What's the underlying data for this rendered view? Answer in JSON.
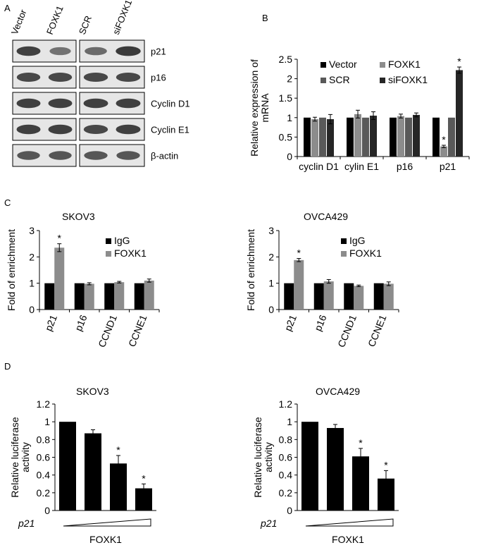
{
  "panels": {
    "A": "A",
    "B": "B",
    "C": "C",
    "D": "D"
  },
  "colors": {
    "black": "#000000",
    "grey": "#8c8c8c",
    "darkgrey": "#595959",
    "verydark": "#262626"
  },
  "blot": {
    "group1_lanes": [
      "Vector",
      "FOXK1"
    ],
    "group2_lanes": [
      "SCR",
      "siFOXK1"
    ],
    "rows": [
      "p21",
      "p16",
      "Cyclin D1",
      "Cyclin E1",
      "β-actin"
    ],
    "intensity": [
      [
        [
          0.9,
          0.55
        ],
        [
          0.6,
          0.95
        ]
      ],
      [
        [
          0.85,
          0.85
        ],
        [
          0.85,
          0.85
        ]
      ],
      [
        [
          0.9,
          0.9
        ],
        [
          0.9,
          0.9
        ]
      ],
      [
        [
          0.9,
          0.9
        ],
        [
          0.85,
          0.9
        ]
      ],
      [
        [
          0.75,
          0.75
        ],
        [
          0.75,
          0.75
        ]
      ]
    ]
  },
  "chart_data": [
    {
      "panel": "B",
      "type": "bar",
      "ylabel": "Relative expression of mRNA",
      "ylim": [
        0,
        2.5
      ],
      "yticks": [
        "0",
        "0.5",
        "1",
        "1.5",
        "2",
        "2.5"
      ],
      "categories": [
        "cyclin D1",
        "cylin E1",
        "p16",
        "p21"
      ],
      "series": [
        {
          "name": "Vector",
          "color": "#000000",
          "values": [
            1.0,
            1.0,
            1.0,
            1.0
          ],
          "errors": [
            0,
            0,
            0,
            0
          ],
          "sig": [
            false,
            false,
            false,
            false
          ]
        },
        {
          "name": "FOXK1",
          "color": "#8c8c8c",
          "values": [
            0.96,
            1.09,
            1.04,
            0.26
          ],
          "errors": [
            0.05,
            0.1,
            0.05,
            0.03
          ],
          "sig": [
            false,
            false,
            false,
            true
          ]
        },
        {
          "name": "SCR",
          "color": "#595959",
          "values": [
            1.0,
            1.0,
            1.0,
            1.0
          ],
          "errors": [
            0,
            0,
            0,
            0
          ],
          "sig": [
            false,
            false,
            false,
            false
          ]
        },
        {
          "name": "siFOXK1",
          "color": "#262626",
          "values": [
            0.96,
            1.05,
            1.07,
            2.22
          ],
          "errors": [
            0.12,
            0.1,
            0.05,
            0.08
          ],
          "sig": [
            false,
            false,
            false,
            true
          ]
        }
      ],
      "legend_position": "top"
    },
    {
      "panel": "C",
      "type": "bar",
      "title": "SKOV3",
      "ylabel": "Fold of enrichment",
      "ylim": [
        0,
        3
      ],
      "yticks": [
        "0",
        "1",
        "2",
        "3"
      ],
      "categories": [
        "p21",
        "p16",
        "CCND1",
        "CCNE1"
      ],
      "series": [
        {
          "name": "IgG",
          "color": "#000000",
          "values": [
            1.0,
            1.0,
            1.0,
            1.0
          ],
          "errors": [
            0,
            0,
            0,
            0
          ],
          "sig": [
            false,
            false,
            false,
            false
          ]
        },
        {
          "name": "FOXK1",
          "color": "#8c8c8c",
          "values": [
            2.35,
            0.98,
            1.04,
            1.1
          ],
          "errors": [
            0.15,
            0.04,
            0.03,
            0.06
          ],
          "sig": [
            true,
            false,
            false,
            false
          ]
        }
      ],
      "legend_position": "top-right"
    },
    {
      "panel": "C",
      "type": "bar",
      "title": "OVCA429",
      "ylabel": "Fold of enrichment",
      "ylim": [
        0,
        3
      ],
      "yticks": [
        "0",
        "1",
        "2",
        "3"
      ],
      "categories": [
        "p21",
        "p16",
        "CCND1",
        "CCNE1"
      ],
      "series": [
        {
          "name": "IgG",
          "color": "#000000",
          "values": [
            1.0,
            1.0,
            1.0,
            1.0
          ],
          "errors": [
            0,
            0,
            0,
            0
          ],
          "sig": [
            false,
            false,
            false,
            false
          ]
        },
        {
          "name": "FOXK1",
          "color": "#8c8c8c",
          "values": [
            1.88,
            1.07,
            0.9,
            0.98
          ],
          "errors": [
            0.06,
            0.07,
            0.03,
            0.07
          ],
          "sig": [
            true,
            false,
            false,
            false
          ]
        }
      ],
      "legend_position": "top-right"
    },
    {
      "panel": "D",
      "type": "bar",
      "title": "SKOV3",
      "ylabel": "Relative luciferase activity",
      "xlabel": "FOXK1",
      "row_label": "p21",
      "ylim": [
        0,
        1.2
      ],
      "yticks": [
        "0",
        "0.2",
        "0.4",
        "0.6",
        "0.8",
        "1",
        "1.2"
      ],
      "categories": [
        "",
        "",
        "",
        ""
      ],
      "values": [
        1.0,
        0.87,
        0.53,
        0.25
      ],
      "errors": [
        0,
        0.04,
        0.09,
        0.05
      ],
      "sig": [
        false,
        false,
        true,
        true
      ],
      "color": "#000000"
    },
    {
      "panel": "D",
      "type": "bar",
      "title": "OVCA429",
      "ylabel": "Relative luciferase activity",
      "xlabel": "FOXK1",
      "row_label": "p21",
      "ylim": [
        0,
        1.2
      ],
      "yticks": [
        "0",
        "0.2",
        "0.4",
        "0.6",
        "0.8",
        "1",
        "1.2"
      ],
      "categories": [
        "",
        "",
        "",
        ""
      ],
      "values": [
        1.0,
        0.93,
        0.61,
        0.36
      ],
      "errors": [
        0,
        0.04,
        0.09,
        0.09
      ],
      "sig": [
        false,
        false,
        true,
        true
      ],
      "color": "#000000"
    }
  ]
}
